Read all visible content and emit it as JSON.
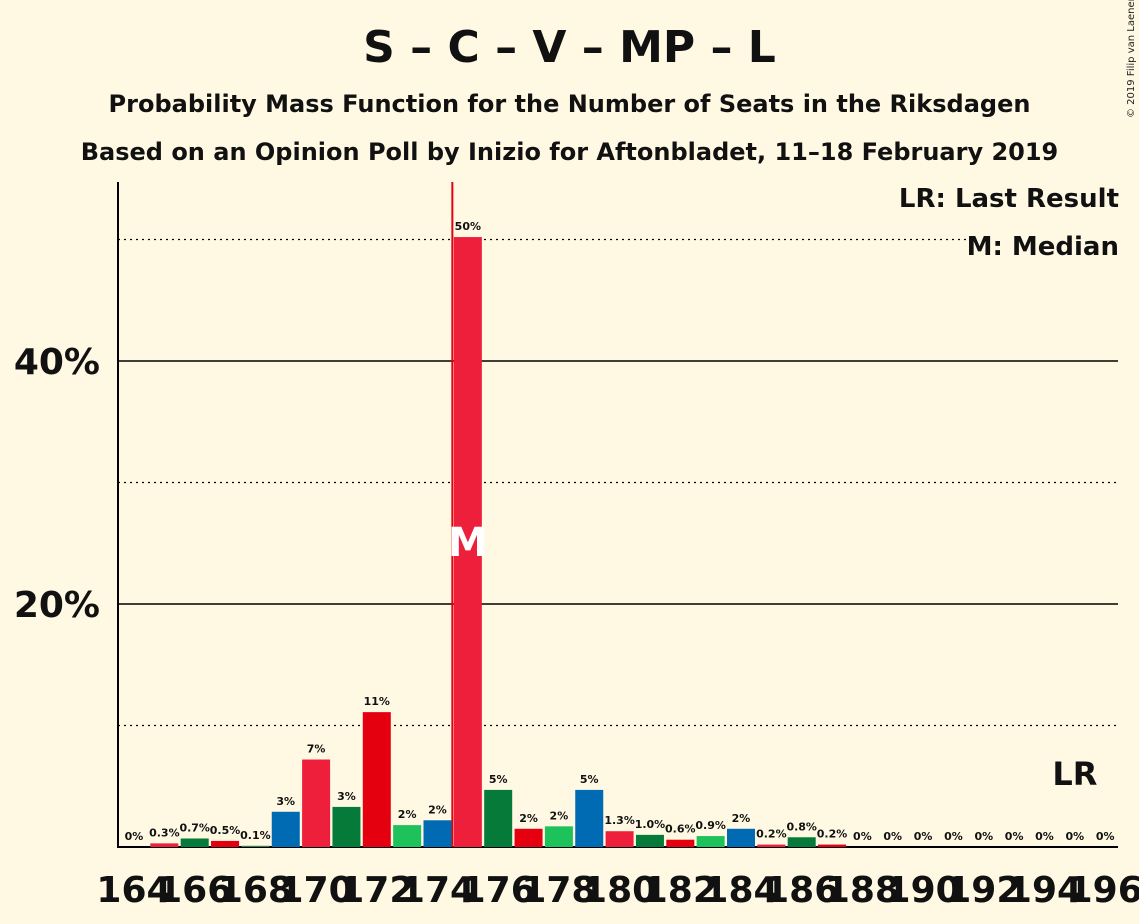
{
  "header": {
    "title": "S – C – V – MP – L",
    "subtitle1": "Probability Mass Function for the Number of Seats in the Riksdagen",
    "subtitle2": "Based on an Opinion Poll by Inizio for Aftonbladet, 11–18 February 2019",
    "copyright": "© 2019 Filip van Laenen"
  },
  "legend": {
    "last_result": "LR: Last Result",
    "median": "M: Median"
  },
  "chart_data": {
    "type": "bar",
    "x": [
      164,
      165,
      166,
      167,
      168,
      169,
      170,
      171,
      172,
      173,
      174,
      175,
      176,
      177,
      178,
      179,
      180,
      181,
      182,
      183,
      184,
      185,
      186,
      187,
      188,
      189,
      190,
      191,
      192,
      193,
      194,
      195,
      196
    ],
    "values": [
      0,
      0.3,
      0.7,
      0.5,
      0.1,
      3,
      7,
      3,
      11,
      2,
      2,
      50,
      5,
      2,
      2,
      5,
      1.3,
      1.0,
      0.6,
      0.9,
      2,
      0.2,
      0.8,
      0.2,
      0,
      0,
      0,
      0,
      0,
      0,
      0,
      0,
      0
    ],
    "heights": [
      0,
      0.3,
      0.7,
      0.5,
      0.1,
      2.9,
      7.2,
      3.3,
      11.1,
      1.8,
      2.2,
      50.2,
      4.7,
      1.5,
      1.7,
      4.7,
      1.3,
      1.0,
      0.6,
      0.9,
      1.5,
      0.2,
      0.8,
      0.2,
      0,
      0,
      0,
      0,
      0,
      0,
      0,
      0,
      0
    ],
    "labels": [
      "0%",
      "0.3%",
      "0.7%",
      "0.5%",
      "0.1%",
      "3%",
      "7%",
      "3%",
      "11%",
      "2%",
      "2%",
      "50%",
      "5%",
      "2%",
      "2%",
      "5%",
      "1.3%",
      "1.0%",
      "0.6%",
      "0.9%",
      "2%",
      "0.2%",
      "0.8%",
      "0.2%",
      "0%",
      "0%",
      "0%",
      "0%",
      "0%",
      "0%",
      "0%",
      "0%",
      "0%"
    ],
    "colors": [
      "#3a7d44",
      "#ee1f3b",
      "#067a39",
      "#e4000f",
      "#3a7d44",
      "#006ab3",
      "#ee1f3b",
      "#067a39",
      "#e4000f",
      "#1dc35a",
      "#006ab3",
      "#ee1f3b",
      "#067a39",
      "#e4000f",
      "#1dc35a",
      "#006ab3",
      "#ee1f3b",
      "#067a39",
      "#e4000f",
      "#1dc35a",
      "#006ab3",
      "#ee1f3b",
      "#067a39",
      "#e4000f",
      "#1dc35a",
      "#006ab3",
      "#ee1f3b",
      "#067a39",
      "#e4000f",
      "#1dc35a",
      "#006ab3",
      "#ee1f3b",
      "#067a39"
    ],
    "x_tick_labels": [
      "164",
      "166",
      "168",
      "170",
      "172",
      "174",
      "176",
      "178",
      "180",
      "182",
      "184",
      "186",
      "188",
      "190",
      "192",
      "194",
      "196"
    ],
    "y_ticks": [
      {
        "value": 20,
        "label": "20%"
      },
      {
        "value": 40,
        "label": "40%"
      }
    ],
    "ylim": [
      0,
      55
    ],
    "median_seat": 175,
    "median_label": "M",
    "last_result_seat": 195,
    "last_result_label": "LR",
    "grid": true
  }
}
